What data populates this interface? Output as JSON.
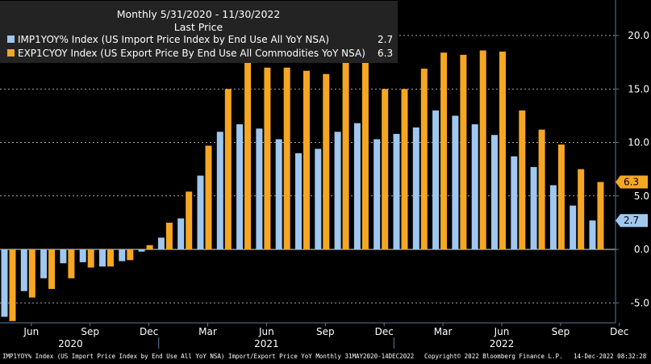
{
  "chart_data": {
    "type": "bar",
    "header": {
      "title": "Monthly 5/31/2020 - 11/30/2022",
      "subtitle": "Last Price"
    },
    "legend_position": "top-left",
    "categories": [
      "May 2020",
      "Jun 2020",
      "Jul 2020",
      "Aug 2020",
      "Sep 2020",
      "Oct 2020",
      "Nov 2020",
      "Dec 2020",
      "Jan 2021",
      "Feb 2021",
      "Mar 2021",
      "Apr 2021",
      "May 2021",
      "Jun 2021",
      "Jul 2021",
      "Aug 2021",
      "Sep 2021",
      "Oct 2021",
      "Nov 2021",
      "Dec 2021",
      "Jan 2022",
      "Feb 2022",
      "Mar 2022",
      "Apr 2022",
      "May 2022",
      "Jun 2022",
      "Jul 2022",
      "Aug 2022",
      "Sep 2022",
      "Oct 2022",
      "Nov 2022"
    ],
    "series": [
      {
        "name": "IMP1YOY% Index (US Import Price Index by End Use All YoY NSA)",
        "last_value": "2.7",
        "color": "#9fc7ef",
        "values": [
          -6.3,
          -3.9,
          -2.7,
          -1.3,
          -1.2,
          -1.6,
          -1.1,
          -0.2,
          1.1,
          2.9,
          6.9,
          11.0,
          11.7,
          11.3,
          10.3,
          9.0,
          9.4,
          11.0,
          11.8,
          10.3,
          10.8,
          11.4,
          13.0,
          12.5,
          11.7,
          10.7,
          8.7,
          7.7,
          6.0,
          4.1,
          2.7
        ]
      },
      {
        "name": "EXP1CYOY Index (US Export Price By End Use All Commodities YoY NSA)",
        "last_value": "6.3",
        "color": "#f5a623",
        "values": [
          -6.7,
          -4.5,
          -3.7,
          -2.7,
          -1.7,
          -1.6,
          -1.0,
          0.4,
          2.5,
          5.4,
          9.7,
          15.0,
          17.5,
          17.0,
          17.0,
          16.7,
          16.4,
          18.3,
          18.2,
          15.0,
          15.0,
          16.9,
          18.4,
          18.2,
          18.6,
          18.5,
          13.0,
          11.2,
          9.8,
          7.5,
          6.3
        ]
      }
    ],
    "ylim": [
      -7.0,
      22.5
    ],
    "y_ticks": [
      -5.0,
      0.0,
      5.0,
      10.0,
      15.0,
      20.0
    ],
    "y_tick_labels": [
      "-5.0",
      "0.0",
      "5.0",
      "10.0",
      "15.0",
      "20.0"
    ],
    "x_tick_labels": [
      {
        "month": "Jun",
        "index": 1
      },
      {
        "month": "Sep",
        "index": 4
      },
      {
        "month": "Dec",
        "index": 7
      },
      {
        "month": "Mar",
        "index": 10
      },
      {
        "month": "Jun",
        "index": 13
      },
      {
        "month": "Sep",
        "index": 16
      },
      {
        "month": "Dec",
        "index": 19
      },
      {
        "month": "Mar",
        "index": 22
      },
      {
        "month": "Jun",
        "index": 25
      },
      {
        "month": "Sep",
        "index": 28
      },
      {
        "month": "Dec",
        "index": 31
      }
    ],
    "year_labels": [
      {
        "year": "2020",
        "index": 3
      },
      {
        "year": "2021",
        "index": 13
      },
      {
        "year": "2022",
        "index": 25
      }
    ],
    "grid": true,
    "xlabel": "",
    "ylabel": ""
  },
  "footer": {
    "left": "IMP1YOY% Index (US Import Price Index by End Use All YoY NSA) Import/Export Price YoY  Monthly 31MAY2020-14DEC2022",
    "copyright": "Copyright© 2022 Bloomberg Finance L.P.",
    "timestamp": "14-Dec-2022 08:32:28"
  },
  "colors": {
    "background": "#000000",
    "import": "#9fc7ef",
    "export": "#f5a623",
    "axis": "#5a7a9a",
    "text": "#ffffff"
  }
}
